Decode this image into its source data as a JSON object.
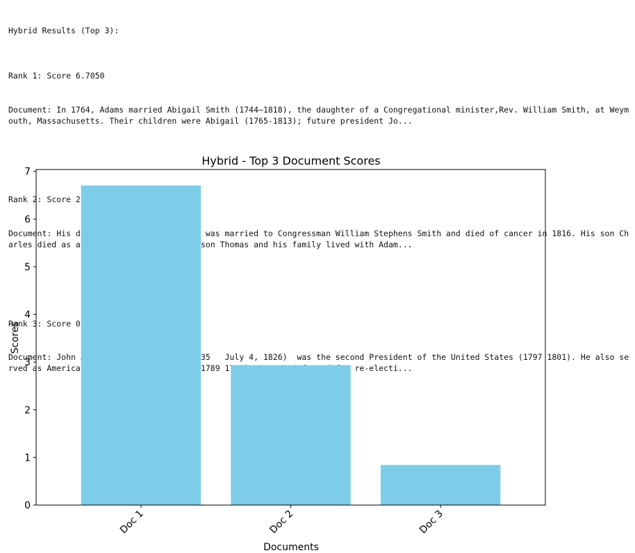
{
  "console": {
    "header": "Hybrid Results (Top 3):",
    "results": [
      {
        "rank_line": "Rank 1: Score 6.7050",
        "document_line": "Document: In 1764, Adams married Abigail Smith (1744–1818), the daughter of a Congregational minister,Rev. William Smith, at Weymouth, Massachusetts. Their children were Abigail (1765-1813); future president Jo..."
      },
      {
        "rank_line": "Rank 2: Score 2.9355",
        "document_line": "Document: His daughter Abigail (\"Nabby\") was married to Congressman William Stephens Smith and died of cancer in 1816. His son Charles died as an alcoholic in 1800. His son Thomas and his family lived with Adam..."
      },
      {
        "rank_line": "Rank 3: Score 0.8408",
        "document_line": "Document: John Adams, Jr. (October 30,1735   July 4, 1826)  was the second President of the United States (1797 1801). He also served as America's first Vice President (1789 1797). He was defeated for re-electi..."
      }
    ]
  },
  "chart_data": {
    "type": "bar",
    "title": "Hybrid - Top 3 Document Scores",
    "xlabel": "Documents",
    "ylabel": "Scores",
    "categories": [
      "Doc 1",
      "Doc 2",
      "Doc 3"
    ],
    "values": [
      6.705,
      2.9355,
      0.8408
    ],
    "yticks": [
      0,
      1,
      2,
      3,
      4,
      5,
      6,
      7
    ],
    "ylim": [
      0,
      7.04
    ],
    "bar_color": "#7ecde8",
    "grid": false,
    "legend": "none"
  }
}
